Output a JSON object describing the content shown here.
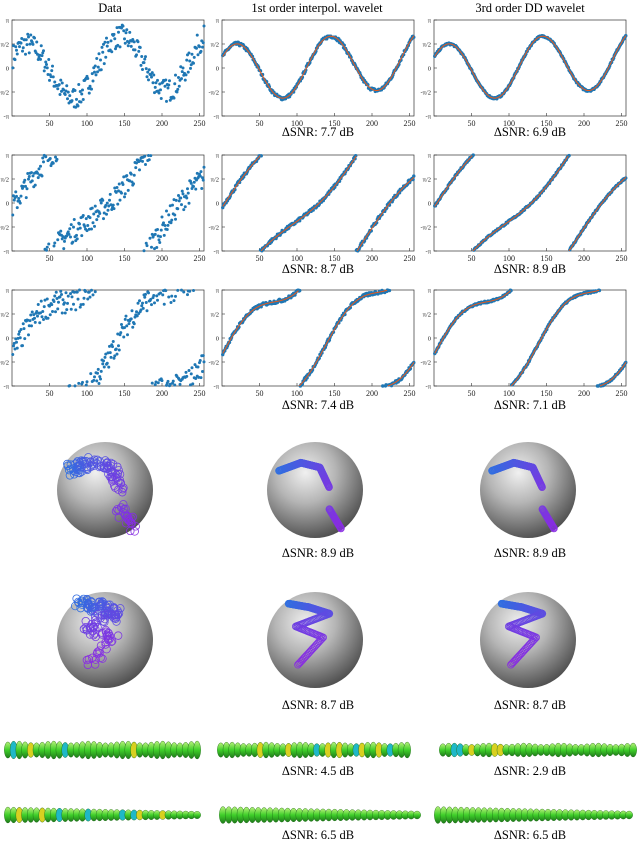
{
  "columns": [
    "Data",
    "1st order interpol. wavelet",
    "3rd order DD wavelet"
  ],
  "y_ticks": [
    "π",
    "π/2",
    "0",
    "-π/2",
    "-π"
  ],
  "x_ticks": [
    "50",
    "100",
    "150",
    "200",
    "250"
  ],
  "captions": {
    "r0": [
      "ΔSNR: 7.7 dB",
      "ΔSNR: 6.9 dB"
    ],
    "r1": [
      "ΔSNR: 8.7 dB",
      "ΔSNR: 8.9 dB"
    ],
    "r2": [
      "ΔSNR: 7.4 dB",
      "ΔSNR: 7.1 dB"
    ],
    "r3": [
      "ΔSNR: 8.9 dB",
      "ΔSNR: 8.9 dB"
    ],
    "r4": [
      "ΔSNR: 8.7 dB",
      "ΔSNR: 8.7 dB"
    ],
    "r5": [
      "ΔSNR: 4.5 dB",
      "ΔSNR: 2.9 dB"
    ],
    "r6": [
      "ΔSNR: 6.5 dB",
      "ΔSNR: 6.5 dB"
    ]
  },
  "colors": {
    "data_points": "#1f77b4",
    "fit_line": "#e8591a",
    "sphere_light": "#d8d8d8",
    "sphere_dark": "#5a5a5a",
    "curve_start": "#2f6fe0",
    "curve_end": "#8a2be2",
    "tube_green": "#3fcf2a",
    "tube_yellow": "#d8d020",
    "tube_cyan": "#1fb8c8"
  },
  "chart_data": [
    {
      "type": "scatter",
      "row": 1,
      "x_range": [
        1,
        256
      ],
      "ylim": [
        "-π",
        "π"
      ],
      "panels": [
        "Data",
        "1st order interpol. wavelet",
        "3rd order DD wavelet"
      ]
    },
    {
      "type": "scatter",
      "row": 2,
      "x_range": [
        1,
        256
      ],
      "ylim": [
        "-π",
        "π"
      ],
      "panels": [
        "Data",
        "1st order interpol. wavelet",
        "3rd order DD wavelet"
      ]
    },
    {
      "type": "scatter",
      "row": 3,
      "x_range": [
        1,
        256
      ],
      "ylim": [
        "-π",
        "π"
      ],
      "panels": [
        "Data",
        "1st order interpol. wavelet",
        "3rd order DD wavelet"
      ]
    }
  ]
}
